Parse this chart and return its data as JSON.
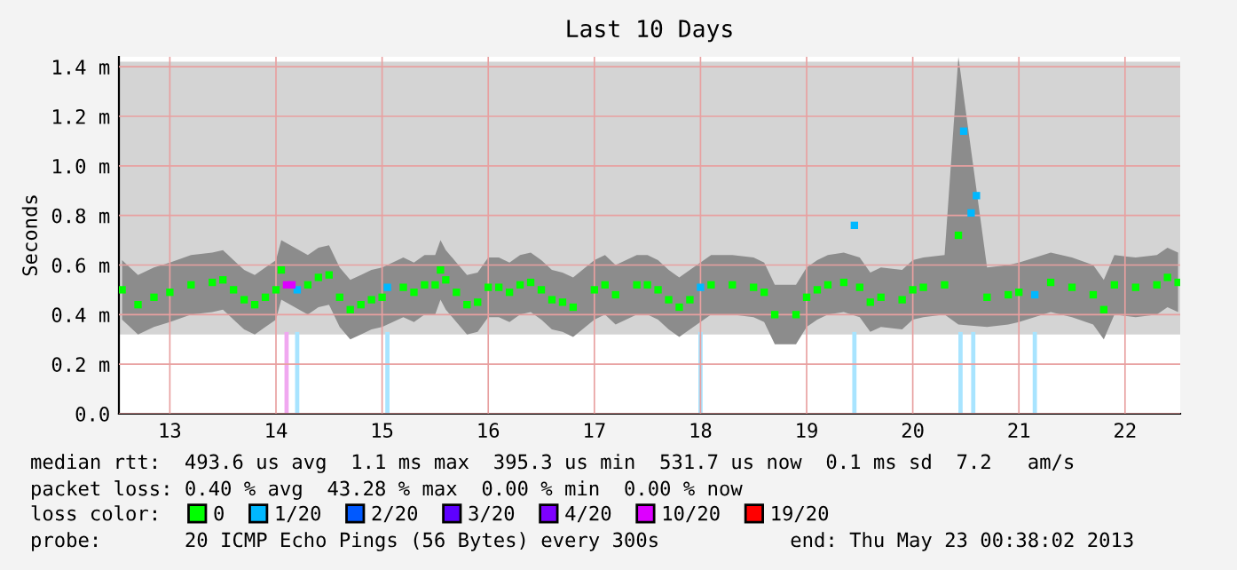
{
  "chart_data": {
    "type": "scatter",
    "title": "Last 10 Days",
    "ylabel": "Seconds",
    "xlim": [
      12.52,
      22.52
    ],
    "xticks": [
      13,
      14,
      15,
      16,
      17,
      18,
      19,
      20,
      21,
      22
    ],
    "ylim": [
      0,
      1.44
    ],
    "yticks": [
      {
        "value": 0,
        "label": "0.0"
      },
      {
        "value": 0.2,
        "label": "0.2 m"
      },
      {
        "value": 0.4,
        "label": "0.4 m"
      },
      {
        "value": 0.6,
        "label": "0.6 m"
      },
      {
        "value": 0.8,
        "label": "0.8 m"
      },
      {
        "value": 1.0,
        "label": "1.0 m"
      },
      {
        "value": 1.2,
        "label": "1.2 m"
      },
      {
        "value": 1.4,
        "label": "1.4 m"
      }
    ],
    "grid": true,
    "legend": "bottom",
    "legend_title": "loss color:",
    "marker": "square",
    "bands": [
      {
        "axis": "y",
        "from": 0.32,
        "to": 1.42,
        "color": "#d4d4d4"
      }
    ],
    "series": [
      {
        "type": "bar",
        "color": "#a8e4ff",
        "x": [
          14.2,
          15.05,
          18.0,
          19.45,
          20.45,
          20.57,
          21.15
        ],
        "values": [
          0.33,
          0.33,
          0.33,
          0.33,
          0.33,
          0.33,
          0.33
        ]
      },
      {
        "type": "bar",
        "color": "#f0a8f0",
        "x": [
          14.1
        ],
        "values": [
          0.33
        ]
      },
      {
        "name": "0",
        "color": "#00ff00",
        "x": [
          12.55,
          12.7,
          12.85,
          13.0,
          13.2,
          13.4,
          13.5,
          13.6,
          13.7,
          13.8,
          13.9,
          14.0,
          14.05,
          14.3,
          14.4,
          14.5,
          14.6,
          14.7,
          14.8,
          14.9,
          15.0,
          15.2,
          15.3,
          15.4,
          15.5,
          15.55,
          15.6,
          15.7,
          15.8,
          15.9,
          16.0,
          16.1,
          16.2,
          16.3,
          16.4,
          16.5,
          16.6,
          16.7,
          16.8,
          17.0,
          17.1,
          17.2,
          17.4,
          17.5,
          17.6,
          17.7,
          17.8,
          17.9,
          18.1,
          18.3,
          18.5,
          18.6,
          18.7,
          18.9,
          19.0,
          19.1,
          19.2,
          19.35,
          19.5,
          19.6,
          19.7,
          19.9,
          20.0,
          20.1,
          20.3,
          20.43,
          20.7,
          20.9,
          21.0,
          21.3,
          21.5,
          21.7,
          21.8,
          21.9,
          22.1,
          22.3,
          22.4,
          22.5
        ],
        "values": [
          0.5,
          0.44,
          0.47,
          0.49,
          0.52,
          0.53,
          0.54,
          0.5,
          0.46,
          0.44,
          0.47,
          0.5,
          0.58,
          0.52,
          0.55,
          0.56,
          0.47,
          0.42,
          0.44,
          0.46,
          0.47,
          0.51,
          0.49,
          0.52,
          0.52,
          0.58,
          0.54,
          0.49,
          0.44,
          0.45,
          0.51,
          0.51,
          0.49,
          0.52,
          0.53,
          0.5,
          0.46,
          0.45,
          0.43,
          0.5,
          0.52,
          0.48,
          0.52,
          0.52,
          0.5,
          0.46,
          0.43,
          0.46,
          0.52,
          0.52,
          0.51,
          0.49,
          0.4,
          0.4,
          0.47,
          0.5,
          0.52,
          0.53,
          0.51,
          0.45,
          0.47,
          0.46,
          0.5,
          0.51,
          0.52,
          0.72,
          0.47,
          0.48,
          0.49,
          0.53,
          0.51,
          0.48,
          0.42,
          0.52,
          0.51,
          0.52,
          0.55,
          0.53
        ],
        "lower": [
          0.38,
          0.32,
          0.35,
          0.37,
          0.4,
          0.41,
          0.42,
          0.38,
          0.34,
          0.32,
          0.35,
          0.38,
          0.46,
          0.4,
          0.43,
          0.44,
          0.35,
          0.3,
          0.32,
          0.34,
          0.35,
          0.39,
          0.37,
          0.4,
          0.4,
          0.46,
          0.42,
          0.37,
          0.32,
          0.33,
          0.39,
          0.39,
          0.37,
          0.4,
          0.41,
          0.38,
          0.34,
          0.33,
          0.31,
          0.38,
          0.4,
          0.36,
          0.4,
          0.4,
          0.38,
          0.34,
          0.31,
          0.34,
          0.4,
          0.4,
          0.39,
          0.37,
          0.28,
          0.28,
          0.35,
          0.38,
          0.4,
          0.41,
          0.39,
          0.33,
          0.35,
          0.34,
          0.38,
          0.39,
          0.4,
          0.36,
          0.35,
          0.36,
          0.37,
          0.41,
          0.39,
          0.36,
          0.3,
          0.4,
          0.39,
          0.4,
          0.43,
          0.41
        ],
        "upper": [
          0.62,
          0.56,
          0.59,
          0.61,
          0.64,
          0.65,
          0.66,
          0.62,
          0.58,
          0.56,
          0.59,
          0.62,
          0.7,
          0.64,
          0.67,
          0.68,
          0.59,
          0.54,
          0.56,
          0.58,
          0.59,
          0.63,
          0.61,
          0.64,
          0.64,
          0.7,
          0.66,
          0.61,
          0.56,
          0.57,
          0.63,
          0.63,
          0.61,
          0.64,
          0.65,
          0.62,
          0.58,
          0.57,
          0.55,
          0.62,
          0.64,
          0.6,
          0.64,
          0.64,
          0.62,
          0.58,
          0.55,
          0.58,
          0.64,
          0.64,
          0.63,
          0.61,
          0.52,
          0.52,
          0.59,
          0.62,
          0.64,
          0.65,
          0.63,
          0.57,
          0.59,
          0.58,
          0.62,
          0.63,
          0.64,
          1.44,
          0.59,
          0.6,
          0.61,
          0.65,
          0.63,
          0.6,
          0.54,
          0.64,
          0.63,
          0.64,
          0.67,
          0.65
        ]
      },
      {
        "name": "1/20",
        "color": "#00b8ff",
        "x": [
          14.2,
          15.05,
          18.0,
          19.45,
          20.48,
          20.55,
          20.6,
          21.15
        ],
        "values": [
          0.5,
          0.51,
          0.51,
          0.76,
          1.14,
          0.81,
          0.88,
          0.48
        ]
      },
      {
        "name": "2/20",
        "color": "#0059ff"
      },
      {
        "name": "3/20",
        "color": "#5e00ff"
      },
      {
        "name": "4/20",
        "color": "#7e00ff"
      },
      {
        "name": "10/20",
        "color": "#dd00ff",
        "x": [
          14.1,
          14.15
        ],
        "values": [
          0.52,
          0.52
        ]
      },
      {
        "name": "19/20",
        "color": "#ff0000"
      }
    ],
    "annotations": [
      "median rtt:  493.6 us avg  1.1 ms max  395.3 us min  531.7 us now  0.1 ms sd  7.2   am/s",
      "packet loss: 0.40 % avg  43.28 % max  0.00 % min  0.00 % now",
      "probe:       20 ICMP Echo Pings (56 Bytes) every 300s           end: Thu May 23 00:38:02 2013"
    ]
  }
}
